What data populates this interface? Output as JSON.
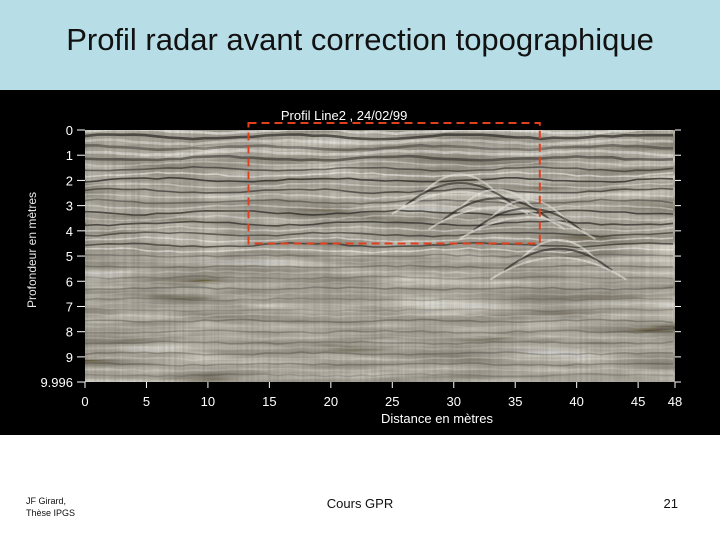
{
  "slide": {
    "title": "Profil radar avant correction topographique",
    "footer_left_line1": "JF Girard,",
    "footer_left_line2": "Thèse IPGS",
    "footer_center": "Cours GPR",
    "page_number": "21"
  },
  "colors": {
    "title_band": "#b7dde6",
    "figure_background": "#000000",
    "highlight_box": "#e0401e"
  },
  "chart_data": {
    "type": "heatmap",
    "title": "Profil Line2 ,  24/02/99",
    "xlabel": "Distance en mètres",
    "ylabel": "Profondeur en mètres",
    "xlim": [
      0,
      48
    ],
    "ylim": [
      0,
      9.996
    ],
    "y_inverted": true,
    "x_ticks": [
      "0",
      "5",
      "10",
      "15",
      "20",
      "25",
      "30",
      "35",
      "40",
      "45",
      "48"
    ],
    "y_ticks": [
      "0",
      "1",
      "2",
      "3",
      "4",
      "5",
      "6",
      "7",
      "8",
      "9",
      "9.996"
    ],
    "x_tick_values": [
      0,
      5,
      10,
      15,
      20,
      25,
      30,
      35,
      40,
      45,
      48
    ],
    "y_tick_values": [
      0,
      1,
      2,
      3,
      4,
      5,
      6,
      7,
      8,
      9,
      9.996
    ],
    "highlight_region": {
      "x_range": [
        13.3,
        37
      ],
      "y_range": [
        0,
        4.5
      ],
      "style": "dashed"
    },
    "colormap": "grayscale-sepia",
    "grid": false
  }
}
